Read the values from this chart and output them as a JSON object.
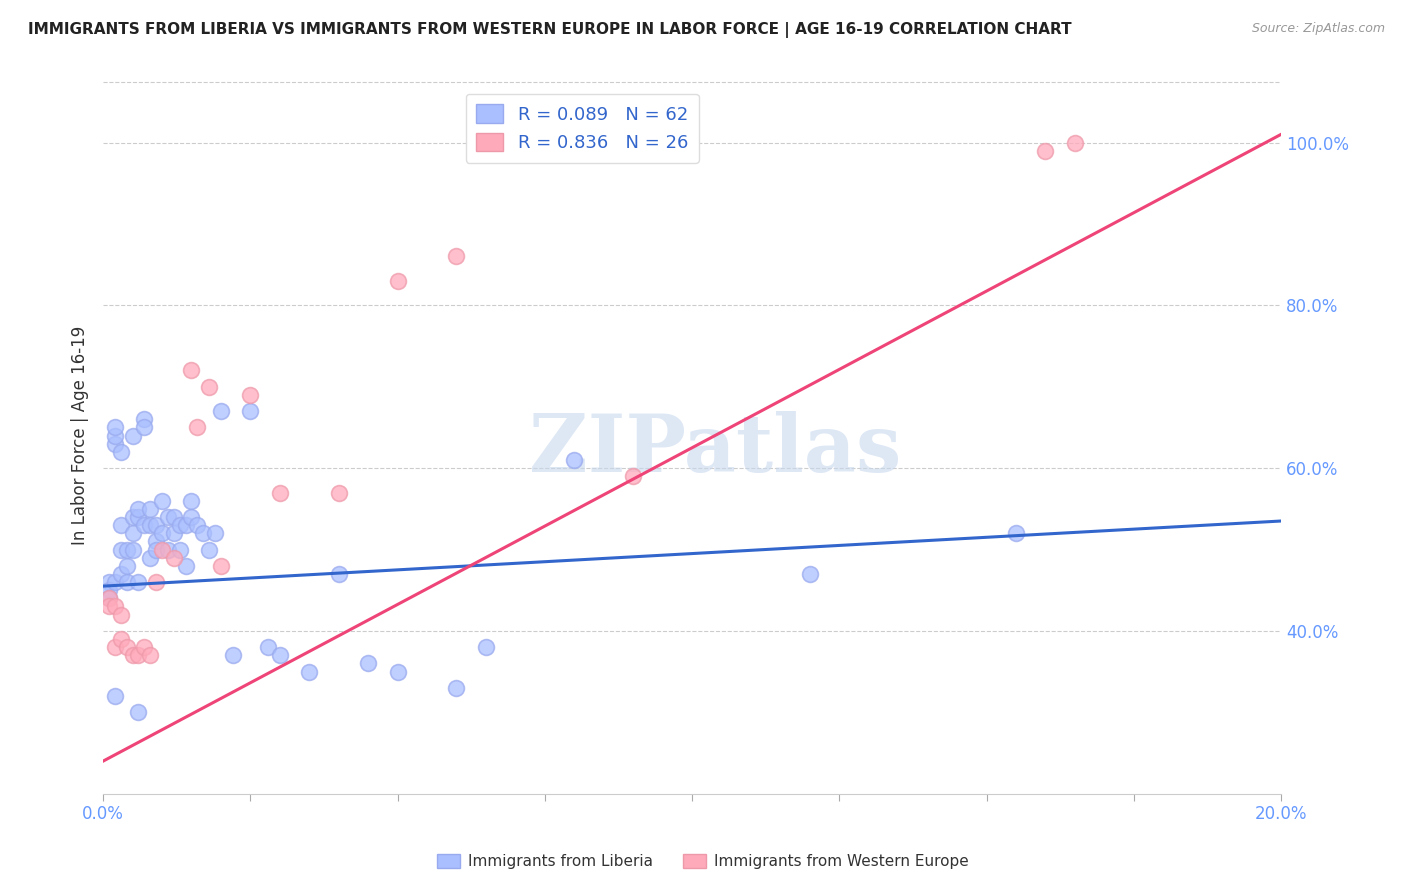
{
  "title": "IMMIGRANTS FROM LIBERIA VS IMMIGRANTS FROM WESTERN EUROPE IN LABOR FORCE | AGE 16-19 CORRELATION CHART",
  "source": "Source: ZipAtlas.com",
  "ylabel": "In Labor Force | Age 16-19",
  "legend_label_blue": "Immigrants from Liberia",
  "legend_label_pink": "Immigrants from Western Europe",
  "R_blue": 0.089,
  "N_blue": 62,
  "R_pink": 0.836,
  "N_pink": 26,
  "xlim": [
    0.0,
    0.2
  ],
  "ylim": [
    0.2,
    1.08
  ],
  "xticks": [
    0.0,
    0.025,
    0.05,
    0.075,
    0.1,
    0.125,
    0.15,
    0.175,
    0.2
  ],
  "xtick_labels": [
    "0.0%",
    "",
    "",
    "",
    "",
    "",
    "",
    "",
    "20.0%"
  ],
  "yticks": [
    0.4,
    0.6,
    0.8,
    1.0
  ],
  "ytick_labels": [
    "40.0%",
    "60.0%",
    "80.0%",
    "100.0%"
  ],
  "blue_fill_color": "#aabfff",
  "blue_edge_color": "#99aaee",
  "pink_fill_color": "#ffaabb",
  "pink_edge_color": "#ee99aa",
  "blue_line_color": "#3366cc",
  "pink_line_color": "#ee4477",
  "title_color": "#222222",
  "tick_color": "#6699ff",
  "grid_color": "#cccccc",
  "background_color": "#ffffff",
  "watermark": "ZIPatlas",
  "blue_scatter_x": [
    0.001,
    0.001,
    0.001,
    0.002,
    0.002,
    0.002,
    0.002,
    0.003,
    0.003,
    0.003,
    0.003,
    0.004,
    0.004,
    0.004,
    0.005,
    0.005,
    0.005,
    0.005,
    0.006,
    0.006,
    0.006,
    0.007,
    0.007,
    0.007,
    0.008,
    0.008,
    0.008,
    0.009,
    0.009,
    0.009,
    0.01,
    0.01,
    0.011,
    0.011,
    0.012,
    0.012,
    0.013,
    0.013,
    0.014,
    0.014,
    0.015,
    0.015,
    0.016,
    0.017,
    0.018,
    0.019,
    0.02,
    0.022,
    0.025,
    0.028,
    0.03,
    0.035,
    0.04,
    0.045,
    0.05,
    0.06,
    0.065,
    0.08,
    0.12,
    0.155,
    0.002,
    0.006
  ],
  "blue_scatter_y": [
    0.46,
    0.45,
    0.44,
    0.46,
    0.63,
    0.64,
    0.65,
    0.47,
    0.5,
    0.62,
    0.53,
    0.48,
    0.5,
    0.46,
    0.52,
    0.54,
    0.5,
    0.64,
    0.54,
    0.55,
    0.46,
    0.53,
    0.66,
    0.65,
    0.53,
    0.55,
    0.49,
    0.51,
    0.53,
    0.5,
    0.52,
    0.56,
    0.5,
    0.54,
    0.54,
    0.52,
    0.53,
    0.5,
    0.53,
    0.48,
    0.56,
    0.54,
    0.53,
    0.52,
    0.5,
    0.52,
    0.67,
    0.37,
    0.67,
    0.38,
    0.37,
    0.35,
    0.47,
    0.36,
    0.35,
    0.33,
    0.38,
    0.61,
    0.47,
    0.52,
    0.32,
    0.3
  ],
  "pink_scatter_x": [
    0.001,
    0.001,
    0.002,
    0.002,
    0.003,
    0.003,
    0.004,
    0.005,
    0.006,
    0.007,
    0.008,
    0.009,
    0.01,
    0.012,
    0.015,
    0.016,
    0.018,
    0.02,
    0.025,
    0.03,
    0.04,
    0.05,
    0.06,
    0.09,
    0.16,
    0.165
  ],
  "pink_scatter_y": [
    0.44,
    0.43,
    0.43,
    0.38,
    0.42,
    0.39,
    0.38,
    0.37,
    0.37,
    0.38,
    0.37,
    0.46,
    0.5,
    0.49,
    0.72,
    0.65,
    0.7,
    0.48,
    0.69,
    0.57,
    0.57,
    0.83,
    0.86,
    0.59,
    0.99,
    1.0
  ],
  "blue_trend_x": [
    0.0,
    0.2
  ],
  "blue_trend_y": [
    0.455,
    0.535
  ],
  "pink_trend_x": [
    0.0,
    0.2
  ],
  "pink_trend_y": [
    0.24,
    1.01
  ]
}
